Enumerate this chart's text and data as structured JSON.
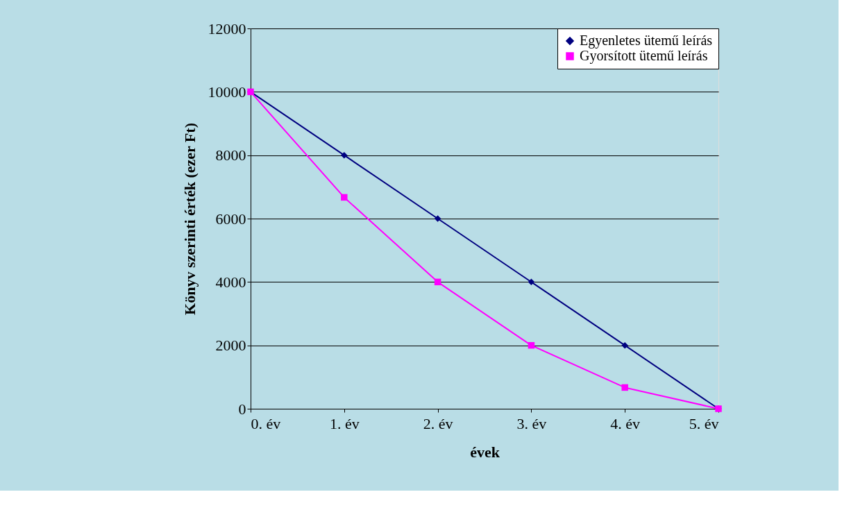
{
  "chart_data": {
    "type": "line",
    "xlabel": "évek",
    "ylabel": "Könyv szerinti érték (ezer Ft)",
    "categories": [
      "0. év",
      "1. év",
      "2. év",
      "3. év",
      "4. év",
      "5. év"
    ],
    "series": [
      {
        "name": "Egyenletes ütemű leírás",
        "color": "#000080",
        "marker": "diamond",
        "values": [
          10000,
          8000,
          6000,
          4000,
          2000,
          0
        ]
      },
      {
        "name": "Gyorsított ütemű leírás",
        "color": "#ff00ff",
        "marker": "square",
        "values": [
          10000,
          6670,
          4000,
          2000,
          670,
          0
        ]
      }
    ],
    "ylim": [
      0,
      12000
    ],
    "yticks": [
      0,
      2000,
      4000,
      6000,
      8000,
      10000,
      12000
    ],
    "grid": "y",
    "legend": "top right",
    "line_style": "solid"
  }
}
